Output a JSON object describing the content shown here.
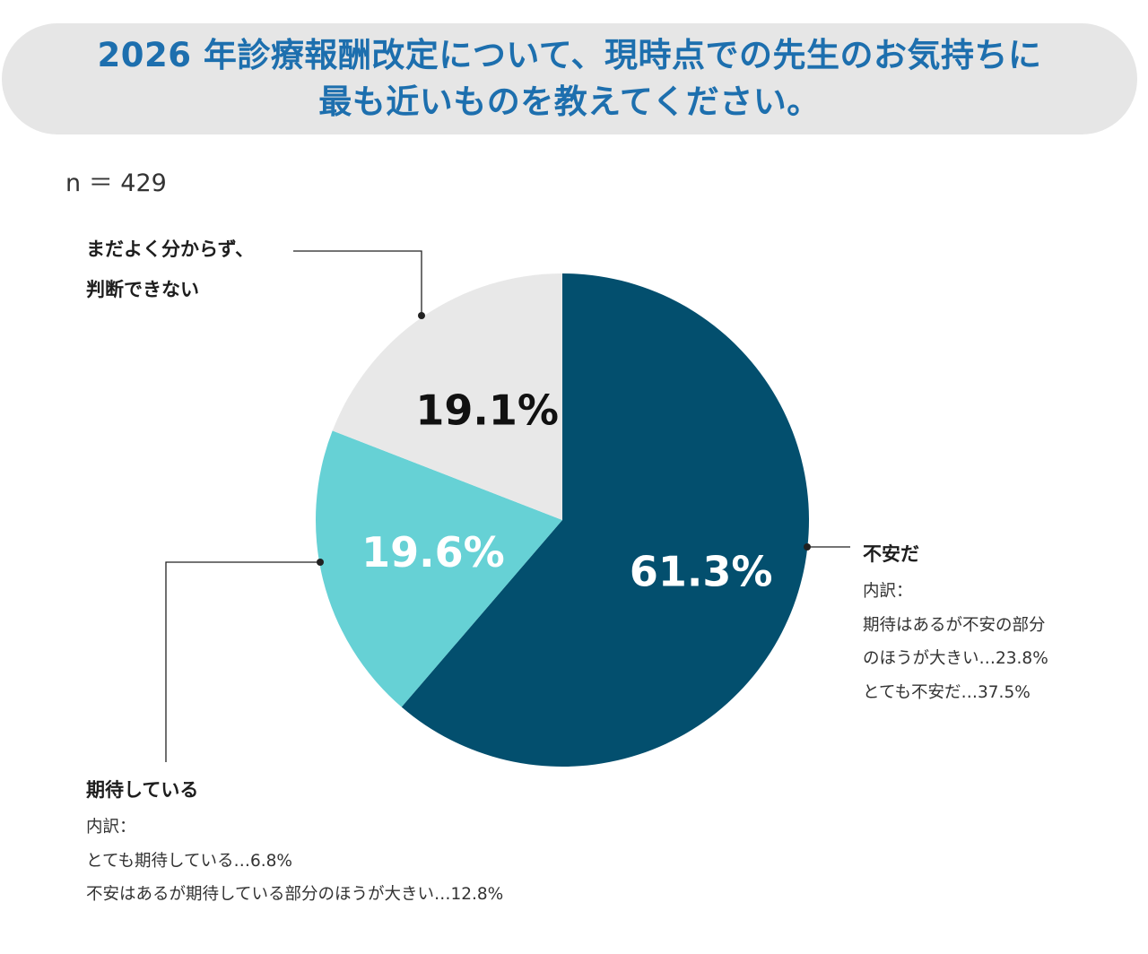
{
  "title": {
    "line1": "2026 年診療報酬改定について、現時点での先生のお気持ちに",
    "line2": "最も近いものを教えてください。"
  },
  "sample_size": "n ＝ 429",
  "colors": {
    "title_text": "#1d6fae",
    "title_bg": "#e6e6e6"
  },
  "chart_data": {
    "type": "pie",
    "title": "2026 年診療報酬改定について、現時点での先生のお気持ちに最も近いものを教えてください。",
    "n": 429,
    "slices": [
      {
        "name": "不安だ",
        "value": 61.3,
        "label": "61.3%",
        "color": "#034f6e",
        "label_color": "#ffffff"
      },
      {
        "name": "期待している",
        "value": 19.6,
        "label": "19.6%",
        "color": "#66d1d5",
        "label_color": "#ffffff"
      },
      {
        "name": "まだよく分からず、判断できない",
        "value": 19.1,
        "label": "19.1%",
        "color": "#e8e8e8",
        "label_color": "#111111"
      }
    ],
    "annotations": {
      "anxious": {
        "label": "不安だ",
        "breakdown_heading": "内訳：",
        "breakdown": [
          "期待はあるが不安の部分",
          "のほうが大きい…23.8%",
          "とても不安だ…37.5%"
        ]
      },
      "expecting": {
        "label": "期待している",
        "breakdown_heading": "内訳：",
        "breakdown": [
          "とても期待している…6.8%",
          "不安はあるが期待している部分のほうが大きい…12.8%"
        ]
      },
      "unsure": {
        "label_line1": "まだよく分からず、",
        "label_line2": "判断できない"
      }
    }
  }
}
